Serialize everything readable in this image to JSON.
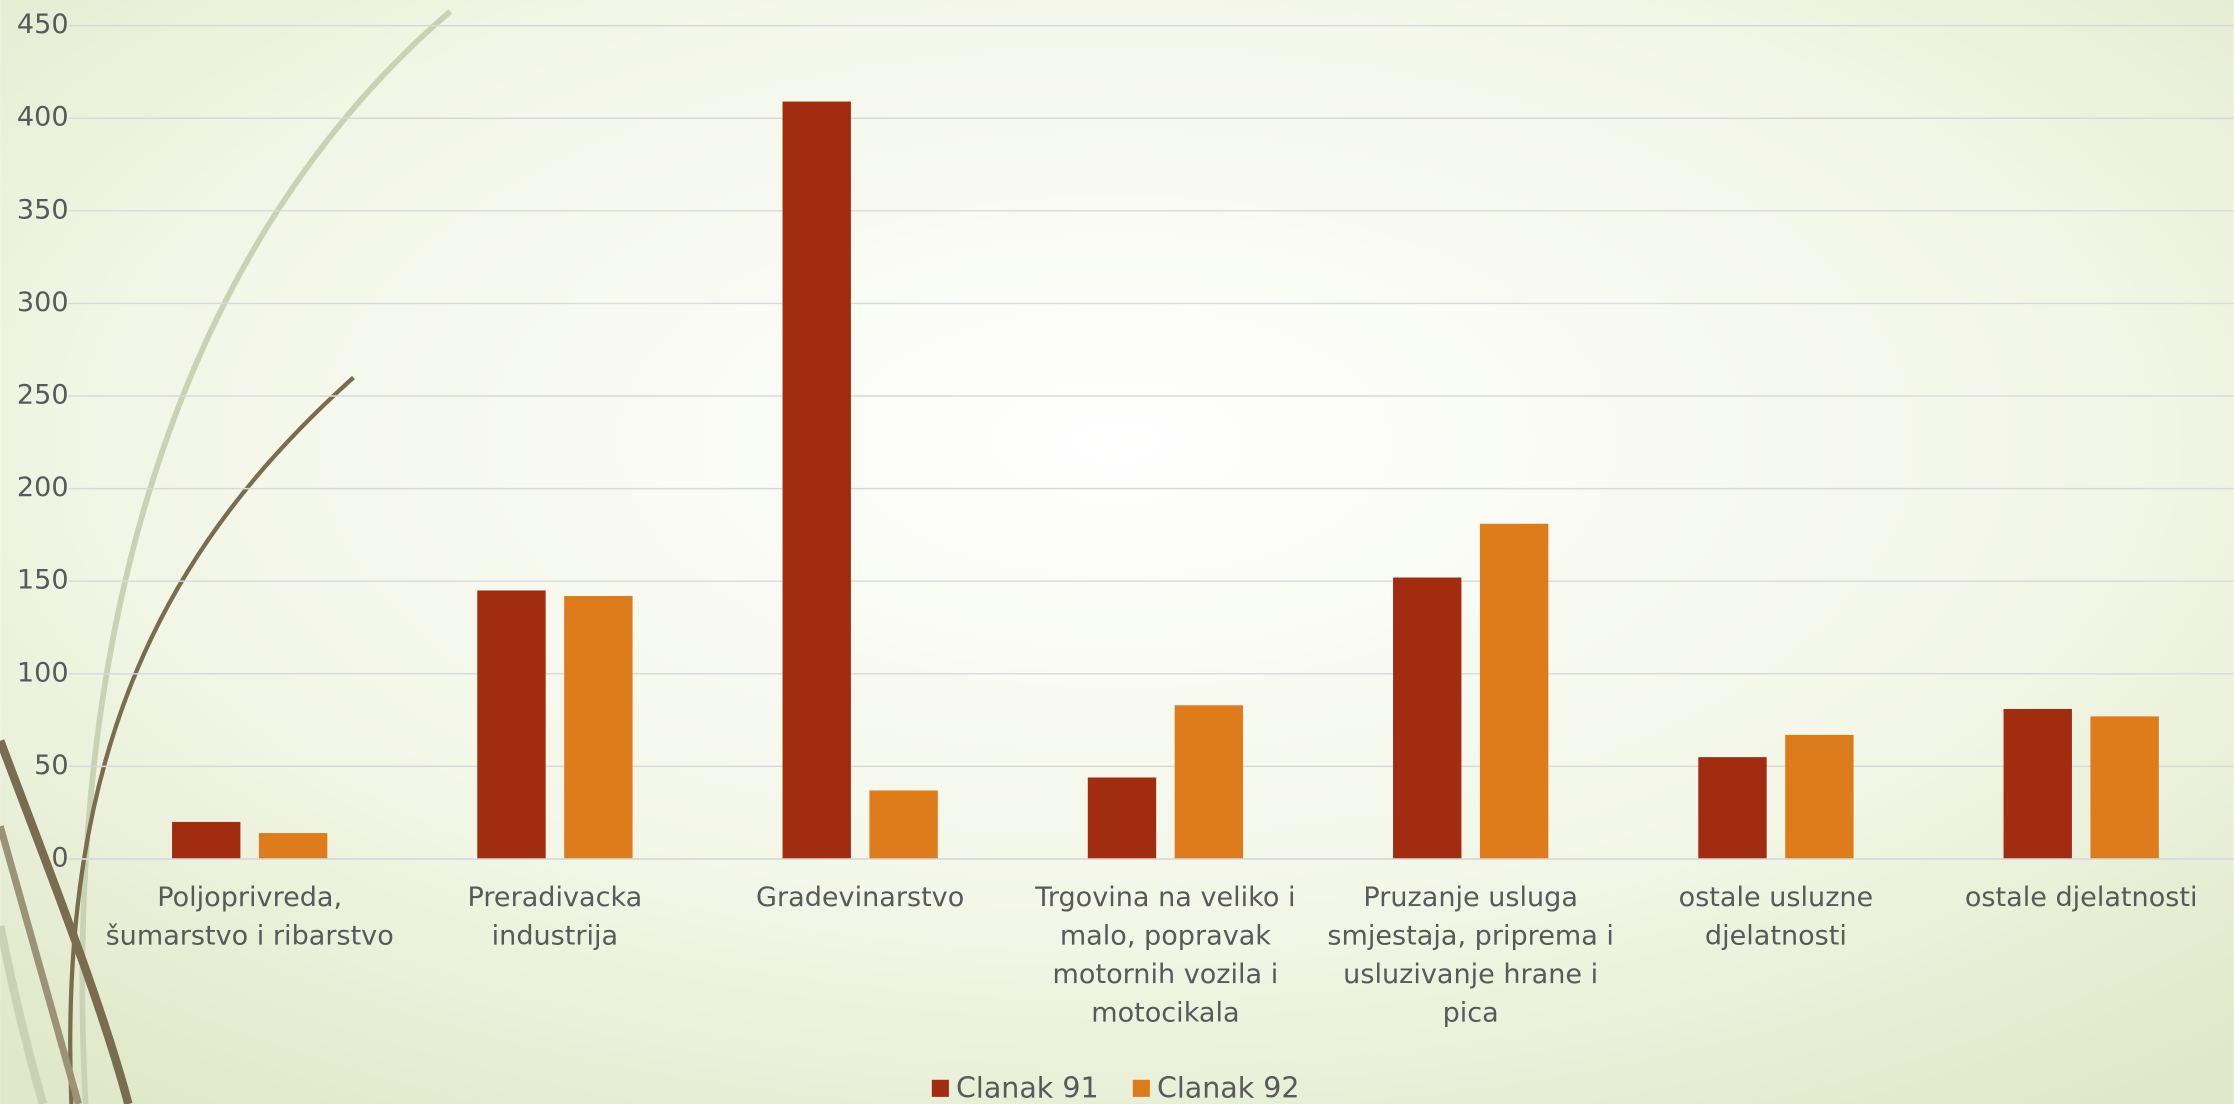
{
  "chart_data": {
    "type": "bar",
    "categories": [
      "Poljoprivreda, šumarstvo i ribarstvo",
      "Preradivacka industrija",
      "Gradevinarstvo",
      "Trgovina na veliko i malo, popravak motornih vozila i motocikala",
      "Pruzanje usluga smjestaja, priprema i usluzivanje hrane i pica",
      "ostale usluzne djelatnosti",
      "ostale djelatnosti"
    ],
    "series": [
      {
        "name": "Clanak 91",
        "color": "#a22c0f",
        "values": [
          20,
          145,
          409,
          44,
          152,
          55,
          81
        ]
      },
      {
        "name": "Clanak 92",
        "color": "#de7c1b",
        "values": [
          14,
          142,
          37,
          83,
          181,
          67,
          77
        ]
      }
    ],
    "ylim": [
      0,
      450
    ],
    "yticks": [
      0,
      50,
      100,
      150,
      200,
      250,
      300,
      350,
      400,
      450
    ],
    "grid": true,
    "legend": "bottom"
  }
}
